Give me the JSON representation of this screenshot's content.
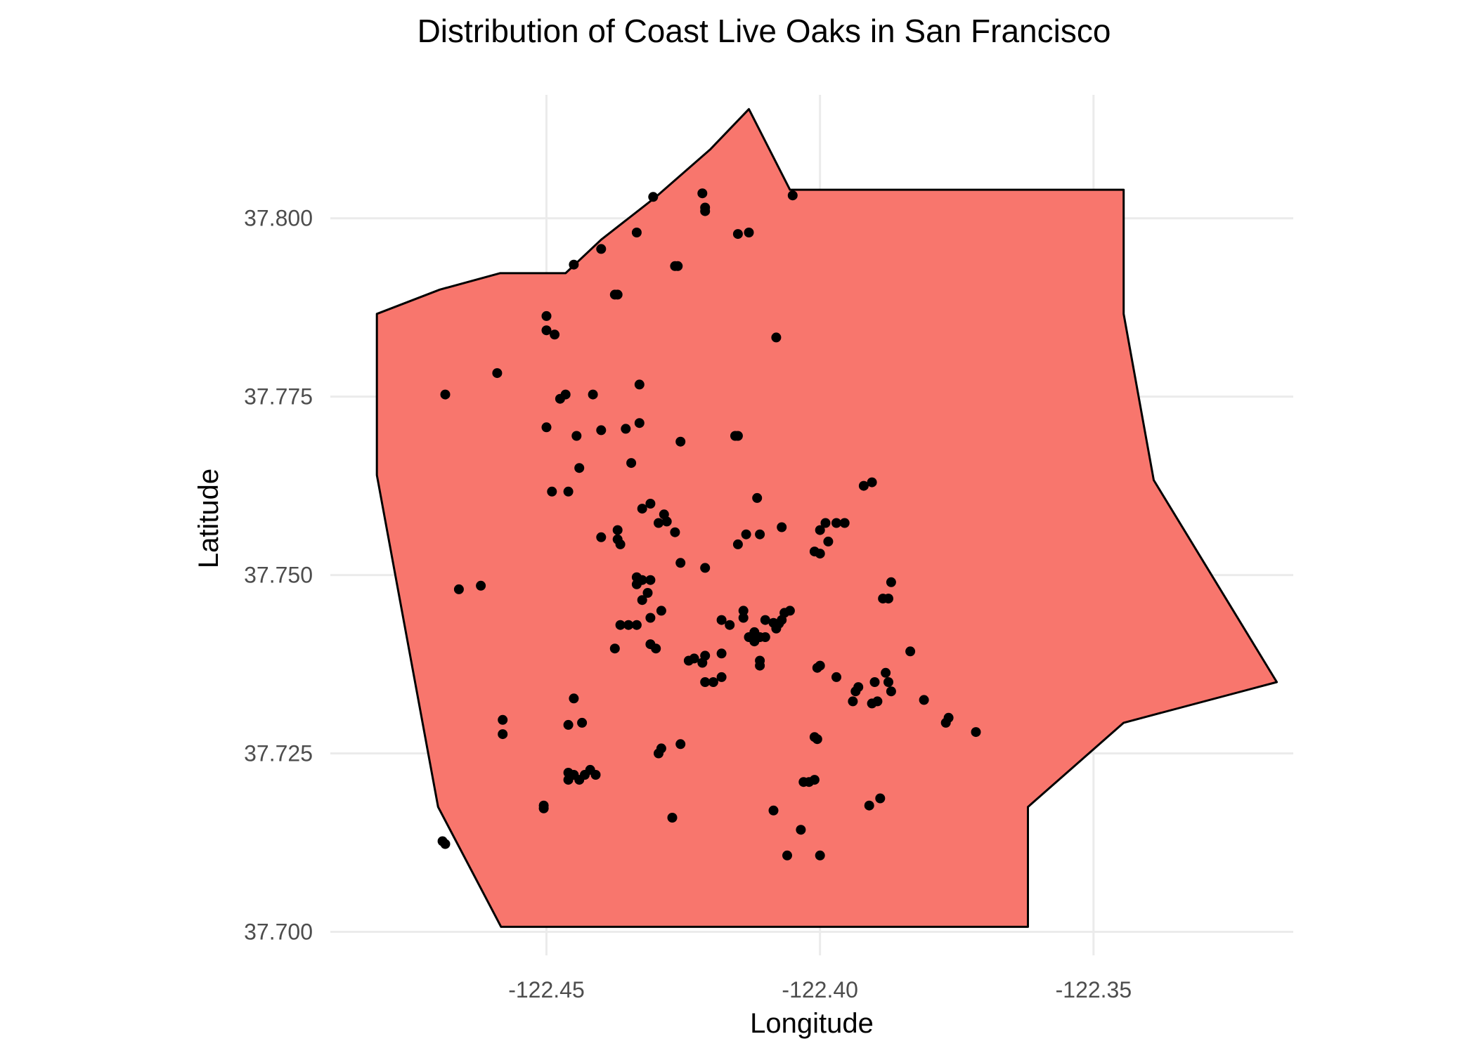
{
  "chart_data": {
    "type": "scatter",
    "title": "Distribution of Coast Live Oaks in San Francisco",
    "xlabel": "Longitude",
    "ylabel": "Latitude",
    "xlim": [
      -122.4895,
      -122.3135
    ],
    "ylim": [
      37.6967,
      37.8173
    ],
    "x_ticks": [
      -122.45,
      -122.4,
      -122.35
    ],
    "x_tick_labels": [
      "-122.45",
      "-122.40",
      "-122.35"
    ],
    "y_ticks": [
      37.7,
      37.725,
      37.75,
      37.775,
      37.8
    ],
    "y_tick_labels": [
      "37.700",
      "37.725",
      "37.750",
      "37.775",
      "37.800"
    ],
    "grid": true,
    "legend": "none",
    "colors": {
      "region_fill": "#F8766D",
      "region_stroke": "#000000",
      "points": "#000000",
      "grid": "#EBEBEB"
    },
    "boundary": [
      [
        -122.413,
        37.8153
      ],
      [
        -122.4055,
        37.804
      ],
      [
        -122.3445,
        37.804
      ],
      [
        -122.3445,
        37.7866
      ],
      [
        -122.339,
        37.7633
      ],
      [
        -122.3165,
        37.735
      ],
      [
        -122.3445,
        37.7293
      ],
      [
        -122.362,
        37.7175
      ],
      [
        -122.362,
        37.7007
      ],
      [
        -122.4583,
        37.7007
      ],
      [
        -122.4698,
        37.7175
      ],
      [
        -122.481,
        37.764
      ],
      [
        -122.481,
        37.7866
      ],
      [
        -122.4695,
        37.79
      ],
      [
        -122.4585,
        37.7923
      ],
      [
        -122.4525,
        37.7923
      ],
      [
        -122.4465,
        37.7923
      ],
      [
        -122.44,
        37.797
      ],
      [
        -122.43,
        37.803
      ],
      [
        -122.42,
        37.8097
      ]
    ],
    "points": [
      [
        -122.4305,
        37.803
      ],
      [
        -122.4215,
        37.8035
      ],
      [
        -122.421,
        37.8015
      ],
      [
        -122.421,
        37.801
      ],
      [
        -122.405,
        37.8032
      ],
      [
        -122.4335,
        37.798
      ],
      [
        -122.415,
        37.7978
      ],
      [
        -122.413,
        37.798
      ],
      [
        -122.44,
        37.7957
      ],
      [
        -122.445,
        37.7935
      ],
      [
        -122.4265,
        37.7933
      ],
      [
        -122.426,
        37.7933
      ],
      [
        -122.437,
        37.7893
      ],
      [
        -122.4375,
        37.7893
      ],
      [
        -122.45,
        37.7863
      ],
      [
        -122.45,
        37.7843
      ],
      [
        -122.4485,
        37.7837
      ],
      [
        -122.408,
        37.7833
      ],
      [
        -122.459,
        37.7783
      ],
      [
        -122.4685,
        37.7753
      ],
      [
        -122.4465,
        37.7753
      ],
      [
        -122.4475,
        37.7747
      ],
      [
        -122.4415,
        37.7753
      ],
      [
        -122.433,
        37.7767
      ],
      [
        -122.45,
        37.7707
      ],
      [
        -122.433,
        37.7713
      ],
      [
        -122.44,
        37.7703
      ],
      [
        -122.4355,
        37.7705
      ],
      [
        -122.4445,
        37.7695
      ],
      [
        -122.4255,
        37.7687
      ],
      [
        -122.4155,
        37.7695
      ],
      [
        -122.415,
        37.7695
      ],
      [
        -122.4345,
        37.7657
      ],
      [
        -122.444,
        37.765
      ],
      [
        -122.449,
        37.7617
      ],
      [
        -122.446,
        37.7617
      ],
      [
        -122.392,
        37.7625
      ],
      [
        -122.3905,
        37.763
      ],
      [
        -122.4115,
        37.7608
      ],
      [
        -122.431,
        37.76
      ],
      [
        -122.4325,
        37.7593
      ],
      [
        -122.4285,
        37.7585
      ],
      [
        -122.4295,
        37.7573
      ],
      [
        -122.428,
        37.7575
      ],
      [
        -122.4265,
        37.756
      ],
      [
        -122.437,
        37.7563
      ],
      [
        -122.437,
        37.755
      ],
      [
        -122.4365,
        37.7543
      ],
      [
        -122.44,
        37.7553
      ],
      [
        -122.4135,
        37.7557
      ],
      [
        -122.411,
        37.7557
      ],
      [
        -122.407,
        37.7567
      ],
      [
        -122.4,
        37.7563
      ],
      [
        -122.399,
        37.7573
      ],
      [
        -122.397,
        37.7573
      ],
      [
        -122.3955,
        37.7573
      ],
      [
        -122.415,
        37.7543
      ],
      [
        -122.3985,
        37.7547
      ],
      [
        -122.401,
        37.7533
      ],
      [
        -122.4,
        37.753
      ],
      [
        -122.4255,
        37.7517
      ],
      [
        -122.421,
        37.751
      ],
      [
        -122.4335,
        37.7497
      ],
      [
        -122.4325,
        37.7493
      ],
      [
        -122.431,
        37.7493
      ],
      [
        -122.4335,
        37.7487
      ],
      [
        -122.4315,
        37.7475
      ],
      [
        -122.4325,
        37.7465
      ],
      [
        -122.387,
        37.749
      ],
      [
        -122.3885,
        37.7467
      ],
      [
        -122.3875,
        37.7467
      ],
      [
        -122.466,
        37.748
      ],
      [
        -122.462,
        37.7485
      ],
      [
        -122.429,
        37.745
      ],
      [
        -122.431,
        37.744
      ],
      [
        -122.4335,
        37.743
      ],
      [
        -122.435,
        37.743
      ],
      [
        -122.4365,
        37.743
      ],
      [
        -122.414,
        37.745
      ],
      [
        -122.414,
        37.744
      ],
      [
        -122.4055,
        37.745
      ],
      [
        -122.4065,
        37.7447
      ],
      [
        -122.407,
        37.7437
      ],
      [
        -122.4075,
        37.7432
      ],
      [
        -122.4085,
        37.7433
      ],
      [
        -122.41,
        37.7437
      ],
      [
        -122.408,
        37.7425
      ],
      [
        -122.418,
        37.7437
      ],
      [
        -122.4165,
        37.743
      ],
      [
        -122.412,
        37.742
      ],
      [
        -122.413,
        37.7413
      ],
      [
        -122.411,
        37.7413
      ],
      [
        -122.41,
        37.7413
      ],
      [
        -122.412,
        37.7407
      ],
      [
        -122.431,
        37.7403
      ],
      [
        -122.43,
        37.7397
      ],
      [
        -122.4375,
        37.7397
      ],
      [
        -122.418,
        37.739
      ],
      [
        -122.421,
        37.7387
      ],
      [
        -122.423,
        37.7383
      ],
      [
        -122.424,
        37.738
      ],
      [
        -122.4215,
        37.7377
      ],
      [
        -122.411,
        37.738
      ],
      [
        -122.411,
        37.7373
      ],
      [
        -122.4,
        37.7373
      ],
      [
        -122.4005,
        37.737
      ],
      [
        -122.397,
        37.7357
      ],
      [
        -122.418,
        37.7357
      ],
      [
        -122.421,
        37.735
      ],
      [
        -122.4195,
        37.735
      ],
      [
        -122.3835,
        37.7393
      ],
      [
        -122.39,
        37.735
      ],
      [
        -122.388,
        37.7363
      ],
      [
        -122.3875,
        37.735
      ],
      [
        -122.387,
        37.7337
      ],
      [
        -122.393,
        37.7343
      ],
      [
        -122.3935,
        37.7337
      ],
      [
        -122.394,
        37.7323
      ],
      [
        -122.3905,
        37.732
      ],
      [
        -122.3895,
        37.7323
      ],
      [
        -122.381,
        37.7325
      ],
      [
        -122.445,
        37.7327
      ],
      [
        -122.458,
        37.7297
      ],
      [
        -122.458,
        37.7277
      ],
      [
        -122.446,
        37.729
      ],
      [
        -122.4435,
        37.7293
      ],
      [
        -122.4255,
        37.7263
      ],
      [
        -122.429,
        37.7257
      ],
      [
        -122.4295,
        37.725
      ],
      [
        -122.401,
        37.7273
      ],
      [
        -122.4005,
        37.727
      ],
      [
        -122.3765,
        37.73
      ],
      [
        -122.377,
        37.7293
      ],
      [
        -122.3715,
        37.728
      ],
      [
        -122.446,
        37.7223
      ],
      [
        -122.445,
        37.722
      ],
      [
        -122.446,
        37.7213
      ],
      [
        -122.444,
        37.7213
      ],
      [
        -122.443,
        37.722
      ],
      [
        -122.442,
        37.7227
      ],
      [
        -122.441,
        37.722
      ],
      [
        -122.403,
        37.721
      ],
      [
        -122.401,
        37.7213
      ],
      [
        -122.402,
        37.721
      ],
      [
        -122.389,
        37.7187
      ],
      [
        -122.391,
        37.7177
      ],
      [
        -122.4505,
        37.7177
      ],
      [
        -122.4505,
        37.7173
      ],
      [
        -122.4085,
        37.717
      ],
      [
        -122.427,
        37.716
      ],
      [
        -122.4035,
        37.7143
      ],
      [
        -122.406,
        37.7107
      ],
      [
        -122.4,
        37.7107
      ],
      [
        -122.469,
        37.7127
      ],
      [
        -122.4685,
        37.7123
      ]
    ]
  }
}
